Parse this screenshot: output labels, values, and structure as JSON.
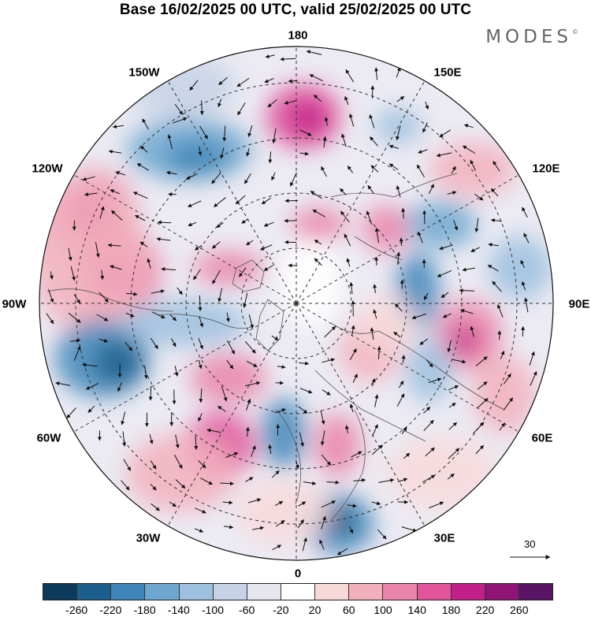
{
  "header": {
    "title": "Base 16/02/2025 00 UTC, valid 25/02/2025 00 UTC",
    "brand": "MODES",
    "brand_mark": "©"
  },
  "map": {
    "projection": "north-polar-stereographic",
    "longitude_labels": [
      "180",
      "150E",
      "120E",
      "90E",
      "60E",
      "30E",
      "0",
      "30W",
      "60W",
      "90W",
      "120W",
      "150W"
    ],
    "reference_vector": {
      "value": "30"
    }
  },
  "colorbar": {
    "colors": [
      "#0b3a5a",
      "#1c5f8c",
      "#3f86b8",
      "#6ea7cf",
      "#9cc0de",
      "#c7d2e6",
      "#e6e6ef",
      "#ffffff",
      "#f8d9da",
      "#f2b0bd",
      "#ea84a8",
      "#e2549b",
      "#c21f8a",
      "#8f1476",
      "#5a1466"
    ],
    "tick_labels": [
      "-260",
      "-220",
      "-180",
      "-140",
      "-100",
      "-60",
      "-20",
      "20",
      "60",
      "100",
      "140",
      "180",
      "220",
      "260"
    ]
  }
}
